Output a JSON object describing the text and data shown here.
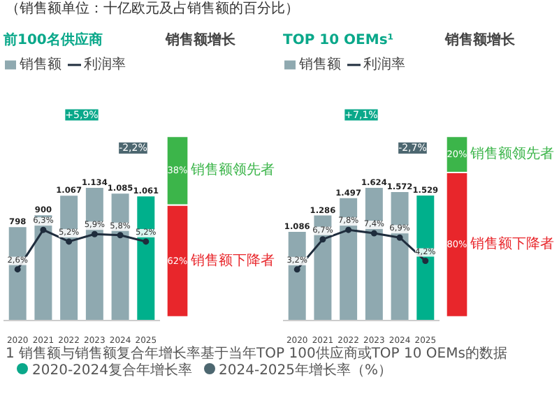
{
  "chart_data": [
    {
      "type": "other",
      "title": "（销售额单位：十亿欧元及占销售额的百分比）",
      "annotations": [
        "1 销售额与销售额复合年增长率基于当年TOP 100供应商或TOP 10 OEMs的数据",
        "2020-2024复合年增长率",
        "2024-2025年增长率（%）"
      ]
    },
    {
      "type": "bar",
      "title": "前100名供应商",
      "categories": [
        "2020",
        "2021",
        "2022",
        "2023",
        "2024",
        "2025"
      ],
      "legend": "top left",
      "marker": "circle",
      "annotations": [
        "+5,9%",
        "-2,2%"
      ],
      "series": [
        {
          "name": "销售额",
          "type": "bar",
          "colors": [
            "#8fa9b0",
            "#8fa9b0",
            "#8fa9b0",
            "#8fa9b0",
            "#8fa9b0",
            "#00b08c"
          ],
          "values": [
            798,
            900,
            1067,
            1134,
            1085,
            1061
          ],
          "value_labels": [
            "798",
            "900",
            "1.067",
            "1.134",
            "1.085",
            "1.061"
          ]
        },
        {
          "name": "利润率",
          "type": "line",
          "axis": "y2",
          "color": "#1f2d3d",
          "values": [
            2.6,
            6.3,
            5.2,
            5.9,
            5.8,
            5.2
          ],
          "value_labels": [
            "2,6%",
            "6,3%",
            "5,2%",
            "5,9%",
            "5,8%",
            "5,2%"
          ]
        }
      ]
    },
    {
      "type": "bar",
      "title": "销售额增长",
      "stacked": true,
      "categories": [
        null
      ],
      "series": [
        {
          "name": "销售额下降者",
          "color": "#e8262b",
          "values": [
            62
          ],
          "value_labels": [
            "62%"
          ]
        },
        {
          "name": "销售额领先者",
          "color": "#3cb54a",
          "values": [
            38
          ],
          "value_labels": [
            "38%"
          ]
        }
      ]
    },
    {
      "type": "bar",
      "title": "TOP 10 OEMs¹",
      "categories": [
        "2020",
        "2021",
        "2022",
        "2023",
        "2024",
        "2025"
      ],
      "legend": "top left",
      "marker": "circle",
      "annotations": [
        "+7,1%",
        "-2,7%"
      ],
      "series": [
        {
          "name": "销售额",
          "type": "bar",
          "colors": [
            "#8fa9b0",
            "#8fa9b0",
            "#8fa9b0",
            "#8fa9b0",
            "#8fa9b0",
            "#00b08c"
          ],
          "values": [
            1086,
            1286,
            1497,
            1624,
            1572,
            1529
          ],
          "value_labels": [
            "1.086",
            "1.286",
            "1.497",
            "1.624",
            "1.572",
            "1.529"
          ]
        },
        {
          "name": "利润率",
          "type": "line",
          "axis": "y2",
          "color": "#1f2d3d",
          "values": [
            3.2,
            6.7,
            7.8,
            7.4,
            6.9,
            4.2
          ],
          "value_labels": [
            "3,2%",
            "6,7%",
            "7,8%",
            "7,4%",
            "6,9%",
            "4,2%"
          ]
        }
      ]
    },
    {
      "type": "bar",
      "title": "销售额增长",
      "stacked": true,
      "categories": [
        null
      ],
      "series": [
        {
          "name": "销售额下降者",
          "color": "#e8262b",
          "values": [
            80
          ],
          "value_labels": [
            "80%"
          ]
        },
        {
          "name": "销售额领先者",
          "color": "#3cb54a",
          "values": [
            20
          ],
          "value_labels": [
            "20%"
          ]
        }
      ]
    }
  ]
}
